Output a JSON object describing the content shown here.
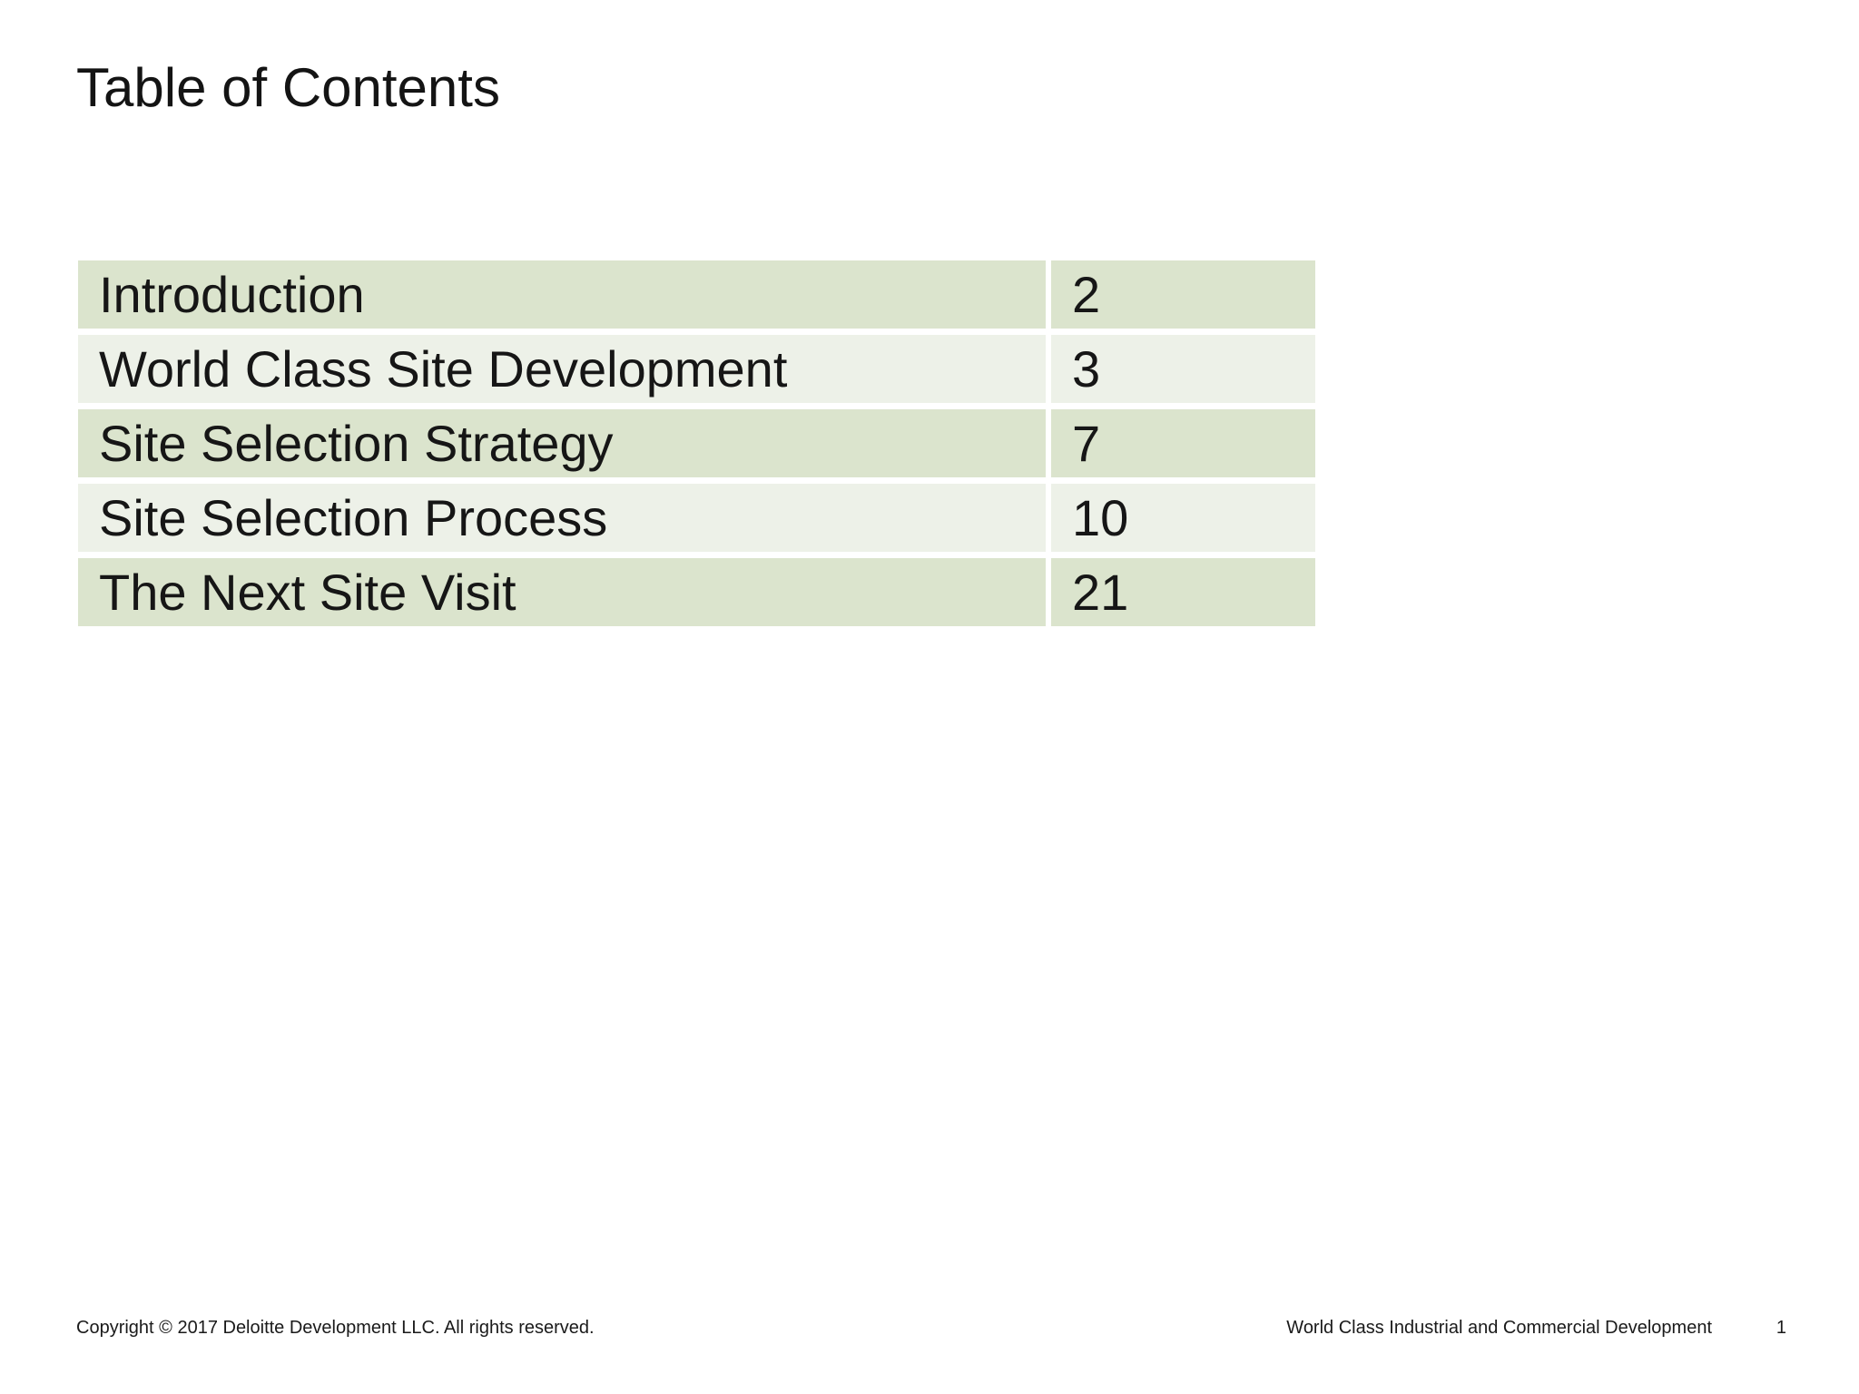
{
  "slide": {
    "title": "Table of Contents",
    "toc": {
      "rows": [
        {
          "label": "Introduction",
          "page": "2"
        },
        {
          "label": "World Class Site Development",
          "page": "3"
        },
        {
          "label": "Site Selection Strategy",
          "page": "7"
        },
        {
          "label": "Site Selection Process",
          "page": "10"
        },
        {
          "label": "The Next Site Visit",
          "page": "21"
        }
      ]
    },
    "footer": {
      "copyright": "Copyright © 2017 Deloitte Development LLC. All rights reserved.",
      "doc_title": "World Class Industrial and Commercial Development",
      "slide_number": "1"
    },
    "colors": {
      "band_dark": "#dbe4cd",
      "band_light": "#edf1e8",
      "text": "#161616",
      "background": "#ffffff"
    }
  }
}
